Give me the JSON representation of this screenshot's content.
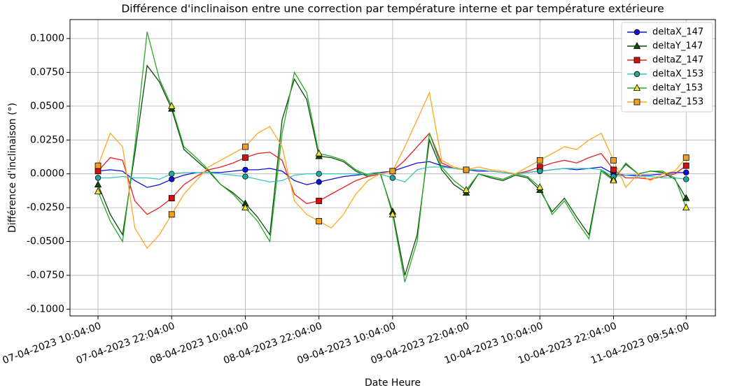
{
  "chart_data": {
    "type": "line",
    "title": "Différence d'inclinaison entre une correction par température interne et par température extérieure",
    "xlabel": "Date Heure",
    "ylabel": "Différence d'inclinaison (°)",
    "x": [
      "07-04-2023 10:04:00",
      "07-04-2023 12:04:00",
      "07-04-2023 14:04:00",
      "07-04-2023 16:04:00",
      "07-04-2023 18:04:00",
      "07-04-2023 20:04:00",
      "07-04-2023 22:04:00",
      "08-04-2023 00:04:00",
      "08-04-2023 02:04:00",
      "08-04-2023 04:04:00",
      "08-04-2023 06:04:00",
      "08-04-2023 08:04:00",
      "08-04-2023 10:04:00",
      "08-04-2023 12:04:00",
      "08-04-2023 14:04:00",
      "08-04-2023 16:04:00",
      "08-04-2023 18:04:00",
      "08-04-2023 20:04:00",
      "08-04-2023 22:04:00",
      "09-04-2023 00:04:00",
      "09-04-2023 02:04:00",
      "09-04-2023 04:04:00",
      "09-04-2023 06:04:00",
      "09-04-2023 08:04:00",
      "09-04-2023 10:04:00",
      "09-04-2023 12:04:00",
      "09-04-2023 14:04:00",
      "09-04-2023 16:04:00",
      "09-04-2023 18:04:00",
      "09-04-2023 20:04:00",
      "09-04-2023 22:04:00",
      "10-04-2023 00:04:00",
      "10-04-2023 02:04:00",
      "10-04-2023 04:04:00",
      "10-04-2023 06:04:00",
      "10-04-2023 08:04:00",
      "10-04-2023 10:04:00",
      "10-04-2023 12:04:00",
      "10-04-2023 14:04:00",
      "10-04-2023 16:04:00",
      "10-04-2023 18:04:00",
      "10-04-2023 20:04:00",
      "10-04-2023 22:04:00",
      "11-04-2023 00:04:00",
      "11-04-2023 02:04:00",
      "11-04-2023 04:04:00",
      "11-04-2023 06:04:00",
      "11-04-2023 08:04:00",
      "11-04-2023 09:54:00"
    ],
    "xlim": [
      "07-04-2023 05:30:00",
      "11-04-2023 14:40:00"
    ],
    "xticks": [
      "07-04-2023 10:04:00",
      "07-04-2023 22:04:00",
      "08-04-2023 10:04:00",
      "08-04-2023 22:04:00",
      "09-04-2023 10:04:00",
      "09-04-2023 22:04:00",
      "10-04-2023 10:04:00",
      "10-04-2023 22:04:00",
      "11-04-2023 09:54:00"
    ],
    "ylim": [
      -0.105,
      0.114
    ],
    "yticks": [
      {
        "value": -0.1,
        "label": "-0.1000"
      },
      {
        "value": -0.075,
        "label": "-0.0750"
      },
      {
        "value": -0.05,
        "label": "-0.0500"
      },
      {
        "value": -0.025,
        "label": "-0.0250"
      },
      {
        "value": 0,
        "label": "0.0000"
      },
      {
        "value": 0.025,
        "label": "0.0250"
      },
      {
        "value": 0.05,
        "label": "0.0500"
      },
      {
        "value": 0.075,
        "label": "0.0750"
      },
      {
        "value": 0.1,
        "label": "0.1000"
      }
    ],
    "grid": true,
    "legend": "upper right",
    "markevery": 6,
    "series": [
      {
        "name": "deltaX_147",
        "color": "#1010e0",
        "marker": "circle",
        "marker_color": "#1010e0",
        "values": [
          0.002,
          0.003,
          0.002,
          -0.005,
          -0.01,
          -0.008,
          -0.004,
          -0.001,
          0.001,
          0.001,
          0.001,
          0.002,
          0.003,
          0.003,
          0.004,
          0.002,
          -0.005,
          -0.008,
          -0.006,
          -0.004,
          -0.002,
          -0.001,
          0.0,
          0.001,
          0.002,
          0.005,
          0.008,
          0.009,
          0.006,
          0.004,
          0.003,
          0.002,
          0.002,
          0.001,
          0.0,
          0.001,
          0.002,
          0.003,
          0.004,
          0.003,
          0.004,
          0.005,
          0.0,
          -0.001,
          -0.001,
          -0.001,
          0.0,
          0.001,
          0.001
        ]
      },
      {
        "name": "deltaY_147",
        "color": "#0b4d0b",
        "marker": "triangle",
        "marker_color": "#0b4d0b",
        "values": [
          -0.008,
          -0.03,
          -0.045,
          0.015,
          0.08,
          0.068,
          0.048,
          0.018,
          0.01,
          0.002,
          -0.008,
          -0.014,
          -0.022,
          -0.032,
          -0.045,
          0.04,
          0.07,
          0.055,
          0.013,
          0.012,
          0.009,
          0.002,
          -0.002,
          0.0,
          -0.028,
          -0.075,
          -0.045,
          0.025,
          0.003,
          -0.008,
          -0.014,
          0.0,
          -0.003,
          -0.005,
          -0.001,
          -0.003,
          -0.012,
          -0.028,
          -0.018,
          -0.032,
          -0.045,
          0.003,
          -0.004,
          0.007,
          0.0,
          0.002,
          0.001,
          -0.004,
          -0.018
        ]
      },
      {
        "name": "deltaZ_147",
        "color": "#e82020",
        "marker": "square",
        "marker_color": "#d41010",
        "values": [
          0.002,
          0.012,
          0.01,
          -0.02,
          -0.03,
          -0.025,
          -0.018,
          -0.008,
          -0.002,
          0.003,
          0.005,
          0.008,
          0.012,
          0.015,
          0.016,
          0.01,
          -0.015,
          -0.022,
          -0.02,
          -0.015,
          -0.01,
          -0.005,
          -0.002,
          0.0,
          0.002,
          0.01,
          0.02,
          0.03,
          0.008,
          0.004,
          0.003,
          0.003,
          0.002,
          0.001,
          0.0,
          0.002,
          0.005,
          0.008,
          0.01,
          0.008,
          0.012,
          0.015,
          0.003,
          -0.003,
          -0.003,
          -0.004,
          -0.002,
          0.0,
          0.006
        ]
      },
      {
        "name": "deltaX_153",
        "color": "#3cc8bc",
        "marker": "circle",
        "marker_color": "#20a89c",
        "values": [
          -0.003,
          -0.003,
          -0.002,
          -0.003,
          -0.003,
          -0.004,
          0.0,
          0.001,
          0.001,
          0.001,
          0.0,
          -0.001,
          -0.002,
          -0.004,
          -0.006,
          -0.005,
          -0.001,
          0.0,
          0.0,
          0.0,
          0.0,
          0.0,
          0.0,
          0.0,
          -0.003,
          -0.006,
          0.003,
          0.005,
          0.005,
          0.004,
          0.003,
          0.003,
          0.002,
          0.001,
          0.0,
          0.001,
          0.002,
          0.003,
          0.004,
          0.004,
          0.004,
          0.003,
          -0.002,
          -0.001,
          -0.002,
          -0.002,
          -0.003,
          -0.003,
          -0.004
        ]
      },
      {
        "name": "deltaY_153",
        "color": "#2aa82a",
        "marker": "triangle",
        "marker_color": "#e6e62a",
        "values": [
          -0.013,
          -0.035,
          -0.05,
          0.02,
          0.105,
          0.07,
          0.05,
          0.02,
          0.012,
          0.003,
          -0.008,
          -0.015,
          -0.025,
          -0.035,
          -0.05,
          0.03,
          0.075,
          0.06,
          0.015,
          0.013,
          0.01,
          0.003,
          -0.001,
          0.001,
          -0.03,
          -0.08,
          -0.05,
          0.03,
          0.005,
          -0.005,
          -0.012,
          0.0,
          -0.002,
          -0.004,
          0.0,
          -0.002,
          -0.01,
          -0.03,
          -0.02,
          -0.035,
          -0.048,
          0.002,
          -0.005,
          0.008,
          0.0,
          0.002,
          0.002,
          -0.003,
          -0.025
        ]
      },
      {
        "name": "deltaZ_153",
        "color": "#ffa820",
        "marker": "square",
        "marker_color": "#f0a020",
        "values": [
          0.006,
          0.03,
          0.02,
          -0.04,
          -0.055,
          -0.045,
          -0.03,
          -0.015,
          -0.005,
          0.005,
          0.01,
          0.015,
          0.02,
          0.03,
          0.035,
          0.02,
          -0.02,
          -0.03,
          -0.035,
          -0.04,
          -0.03,
          -0.015,
          -0.005,
          0.0,
          0.002,
          0.02,
          0.04,
          0.06,
          0.01,
          0.005,
          0.003,
          0.005,
          0.003,
          0.002,
          0.0,
          0.005,
          0.01,
          0.015,
          0.02,
          0.018,
          0.025,
          0.03,
          0.01,
          -0.01,
          0.0,
          -0.005,
          0.0,
          0.002,
          0.012
        ]
      }
    ]
  }
}
